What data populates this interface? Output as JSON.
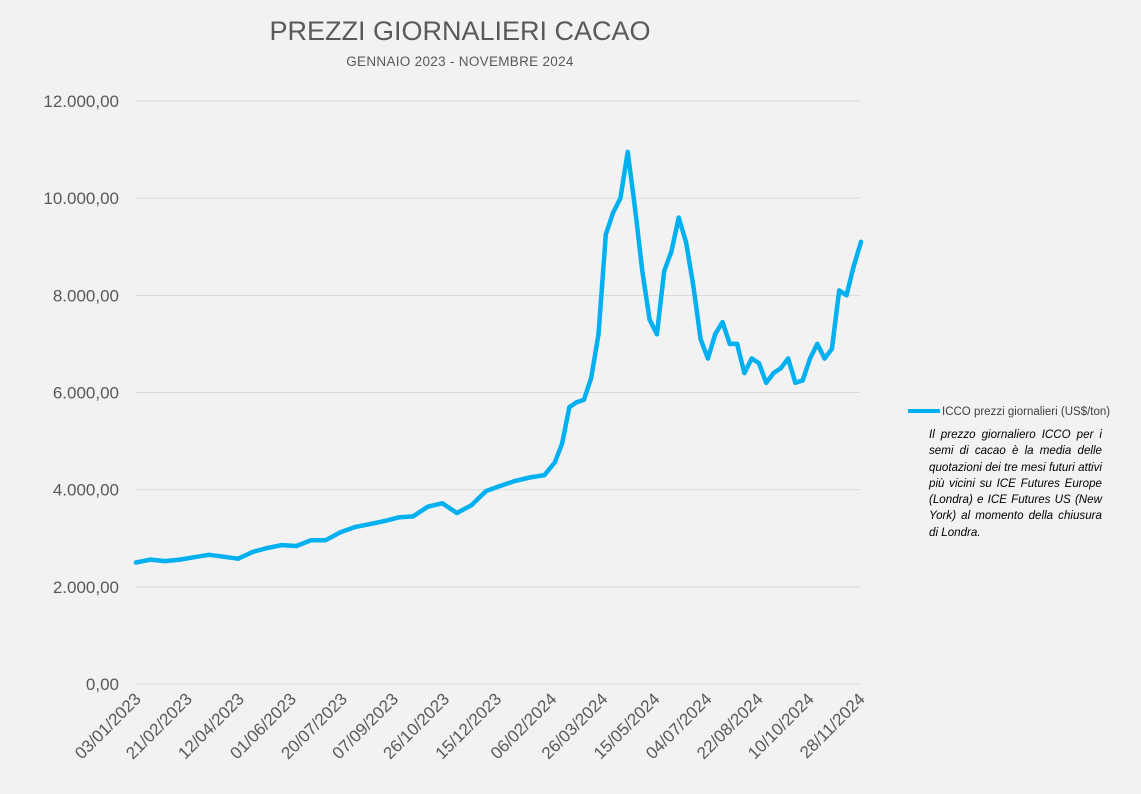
{
  "chart_data": {
    "type": "line",
    "title": "PREZZI GIORNALIERI CACAO",
    "subtitle": "GENNAIO 2023  - NOVEMBRE 2024",
    "xlabel": "",
    "ylabel": "",
    "ylim": [
      0,
      12000
    ],
    "yticks": [
      "0,00",
      "2.000,00",
      "4.000,00",
      "6.000,00",
      "8.000,00",
      "10.000,00",
      "12.000,00"
    ],
    "yticks_values": [
      0,
      2000,
      4000,
      6000,
      8000,
      10000,
      12000
    ],
    "xticks": [
      "03/01/2023",
      "21/02/2023",
      "12/04/2023",
      "01/06/2023",
      "20/07/2023",
      "07/09/2023",
      "26/10/2023",
      "15/12/2023",
      "06/02/2024",
      "26/03/2024",
      "15/05/2024",
      "04/07/2024",
      "22/08/2024",
      "10/10/2024",
      "28/11/2024"
    ],
    "grid": true,
    "legend_position": "right",
    "series": [
      {
        "name": "ICCO prezzi giornalieri (US$/ton)",
        "color": "#00b0f0",
        "x": [
          "03/01/2023",
          "17/01/2023",
          "31/01/2023",
          "14/02/2023",
          "28/02/2023",
          "14/03/2023",
          "28/03/2023",
          "11/04/2023",
          "25/04/2023",
          "09/05/2023",
          "23/05/2023",
          "06/06/2023",
          "20/06/2023",
          "04/07/2023",
          "18/07/2023",
          "01/08/2023",
          "15/08/2023",
          "29/08/2023",
          "12/09/2023",
          "26/09/2023",
          "10/10/2023",
          "24/10/2023",
          "07/11/2023",
          "21/11/2023",
          "05/12/2023",
          "19/12/2023",
          "02/01/2024",
          "16/01/2024",
          "30/01/2024",
          "09/02/2024",
          "16/02/2024",
          "23/02/2024",
          "01/03/2024",
          "08/03/2024",
          "15/03/2024",
          "22/03/2024",
          "29/03/2024",
          "05/04/2024",
          "12/04/2024",
          "19/04/2024",
          "26/04/2024",
          "03/05/2024",
          "10/05/2024",
          "17/05/2024",
          "24/05/2024",
          "31/05/2024",
          "07/06/2024",
          "14/06/2024",
          "21/06/2024",
          "28/06/2024",
          "05/07/2024",
          "12/07/2024",
          "19/07/2024",
          "26/07/2024",
          "02/08/2024",
          "09/08/2024",
          "16/08/2024",
          "23/08/2024",
          "30/08/2024",
          "06/09/2024",
          "13/09/2024",
          "20/09/2024",
          "27/09/2024",
          "04/10/2024",
          "11/10/2024",
          "18/10/2024",
          "25/10/2024",
          "01/11/2024",
          "08/11/2024",
          "15/11/2024",
          "22/11/2024",
          "29/11/2024"
        ],
        "values": [
          2500,
          2560,
          2530,
          2560,
          2610,
          2660,
          2620,
          2580,
          2720,
          2800,
          2860,
          2840,
          2960,
          2960,
          3120,
          3230,
          3290,
          3350,
          3430,
          3450,
          3650,
          3720,
          3520,
          3680,
          3970,
          4080,
          4180,
          4250,
          4300,
          4560,
          4950,
          5700,
          5800,
          5850,
          6300,
          7200,
          9250,
          9700,
          10000,
          10950,
          9800,
          8500,
          7500,
          7200,
          8500,
          8900,
          9600,
          9100,
          8200,
          7100,
          6700,
          7200,
          7450,
          7000,
          7000,
          6400,
          6700,
          6600,
          6200,
          6400,
          6500,
          6700,
          6200,
          6250,
          6700,
          7000,
          6700,
          6900,
          8100,
          8000,
          8600,
          9100
        ]
      }
    ]
  },
  "note": "Il prezzo giornaliero ICCO per i semi di cacao è la media delle quotazioni dei tre mesi futuri attivi più vicini su ICE Futures Europe (Londra) e ICE Futures US (New York) al momento della chiusura di Londra."
}
